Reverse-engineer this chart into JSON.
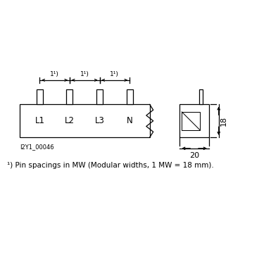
{
  "bg_color": "#ffffff",
  "line_color": "#000000",
  "fig_width": 3.85,
  "fig_height": 3.85,
  "dpi": 100,
  "footnote": "¹) Pin spacings in MW (Modular widths, 1 MW = 18 mm).",
  "image_code": "I2Y1_00046",
  "dimension_18": "18",
  "dimension_20": "20",
  "labels": [
    "L1",
    "L2",
    "L3",
    "N"
  ],
  "spacing_label": "1¹)"
}
